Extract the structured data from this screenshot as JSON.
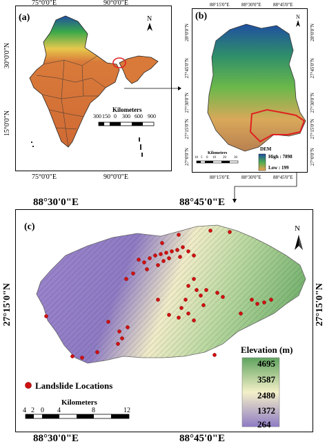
{
  "panel_a": {
    "label": "(a)",
    "top_ticks": [
      "75°0'0\"E",
      "90°0'0\"E"
    ],
    "bottom_ticks": [
      "75°0'0\"E",
      "90°0'0\"E"
    ],
    "left_ticks": [
      "30°0'0\"N",
      "15°0'0\"N"
    ],
    "scale_title": "Kilometers",
    "scale_ticks": [
      "300",
      "150",
      "0",
      "300",
      "600",
      "900"
    ],
    "north": "N"
  },
  "panel_b": {
    "label": "(b)",
    "top_ticks": [
      "88°15'0\"E",
      "88°30'0\"E",
      "88°45'0\"E"
    ],
    "bottom_ticks": [
      "88°15'0\"E",
      "88°30'0\"E",
      "88°45'0\"E"
    ],
    "left_ticks": [
      "28°0'0\"N",
      "27°45'0\"N",
      "27°30'0\"N",
      "27°15'0\"N",
      "27°0'0\"N"
    ],
    "right_ticks": [
      "28°0'0\"N",
      "27°45'0\"N",
      "27°30'0\"N",
      "27°15'0\"N",
      "27°0'0\"N"
    ],
    "scale_title": "Kilometers",
    "scale_ticks": [
      "10",
      "5",
      "0",
      "10",
      "20",
      "30"
    ],
    "legend_title": "DEM",
    "legend_high": "High : 7898",
    "legend_low": "Low : 199",
    "north": "N"
  },
  "panel_c": {
    "label": "(c)",
    "top_ticks": [
      "88°30'0\"E",
      "88°45'0\"E"
    ],
    "bottom_ticks": [
      "88°30'0\"E",
      "88°45'0\"E"
    ],
    "left_tick": "27°15'0\"N",
    "right_tick": "27°15'0\"N",
    "legend_title": "Elevation (m)",
    "legend_values": [
      "4695",
      "3587",
      "2480",
      "1372",
      "264"
    ],
    "landslide_label": "Landslide Locations",
    "scale_title": "Kilometers",
    "scale_ticks": [
      "4",
      "2",
      "0",
      "4",
      "8",
      "12"
    ],
    "north": "N"
  },
  "colors": {
    "dem_high": "#1f4fa0",
    "dem_mid": "#4caf50",
    "dem_low": "#f0a050",
    "india_fill": "#d97a3a",
    "elev_high": "#5fa35f",
    "elev_mid": "#f4f0c8",
    "elev_low": "#8e7bc4",
    "landslide": "#d01010",
    "highlight": "#e02020"
  },
  "icons": [
    "north-arrow-icon",
    "landslide-marker-icon"
  ]
}
